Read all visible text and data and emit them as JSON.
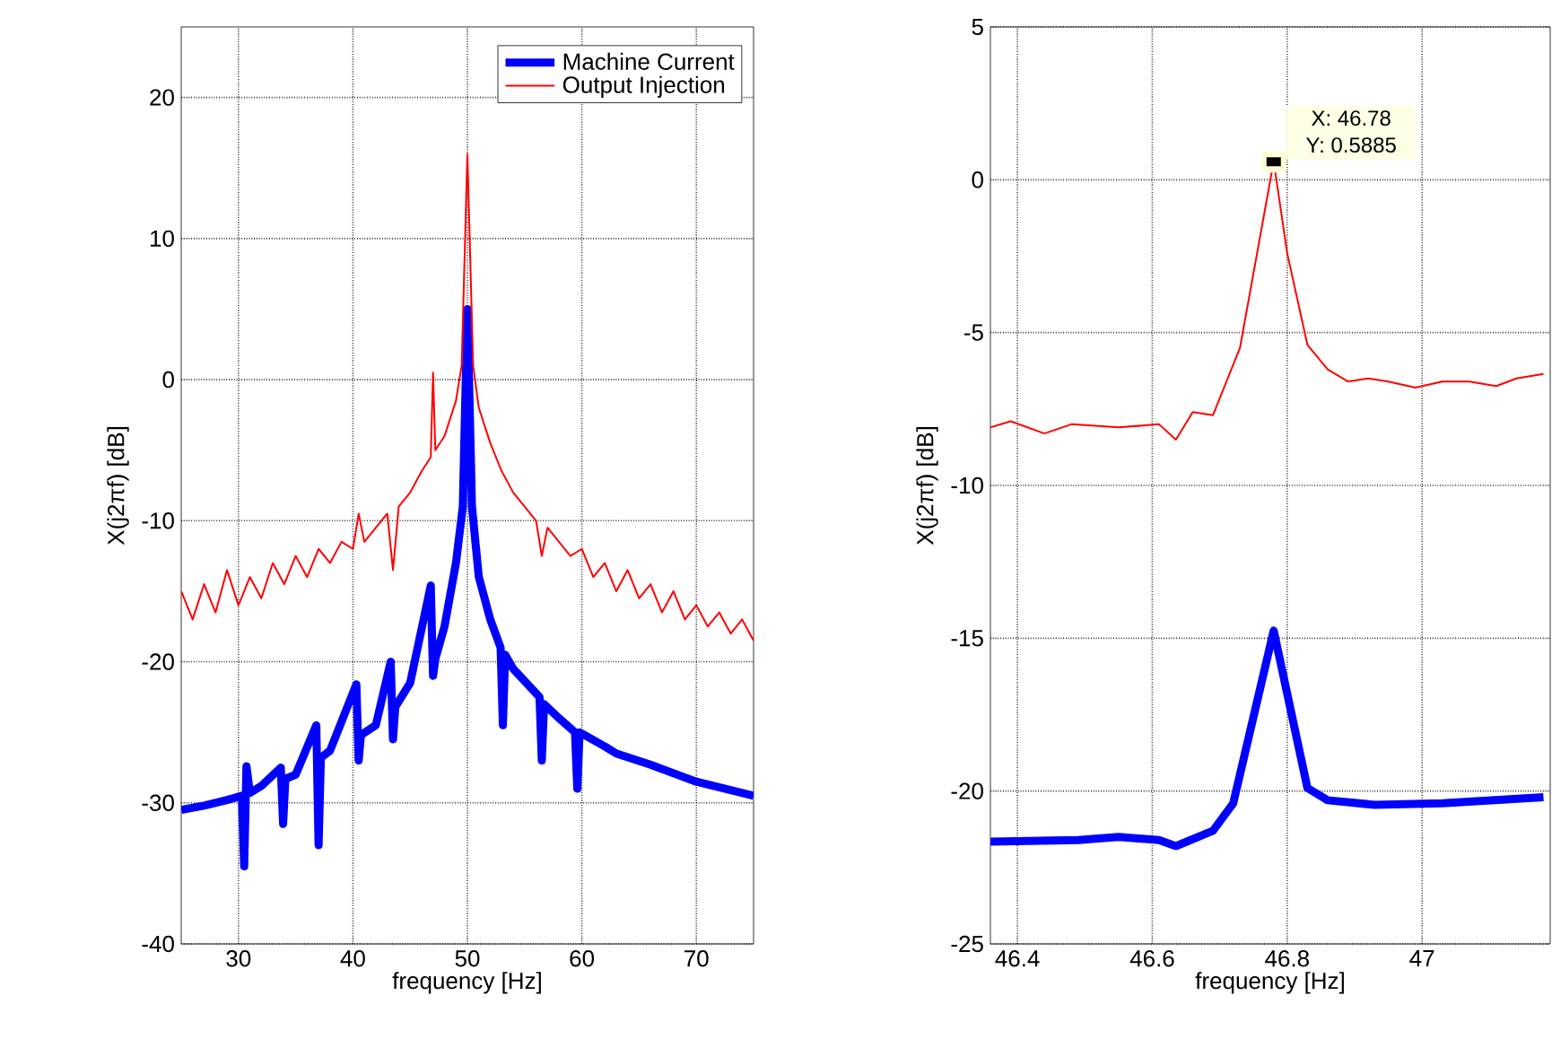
{
  "chart_data": [
    {
      "type": "line",
      "xlabel": "frequency [Hz]",
      "ylabel": "X(j2πf) [dB]",
      "xlim": [
        25,
        75
      ],
      "ylim": [
        -40,
        25
      ],
      "xticks": [
        30,
        40,
        50,
        60,
        70
      ],
      "yticks": [
        -40,
        -30,
        -20,
        -10,
        0,
        10,
        20
      ],
      "grid": true,
      "legend": "top right",
      "series": [
        {
          "name": "Machine Current",
          "color": "#0000ff",
          "x": [
            25,
            27,
            29,
            30.3,
            30.5,
            30.7,
            31,
            32,
            33.7,
            33.9,
            34.1,
            35,
            36.8,
            37,
            37.2,
            38,
            40.3,
            40.5,
            40.7,
            42,
            43.3,
            43.5,
            43.7,
            45,
            46.8,
            47,
            47.2,
            48,
            49,
            49.6,
            50,
            50.4,
            51,
            52,
            52.9,
            53.1,
            53.3,
            54,
            56.3,
            56.5,
            56.7,
            58,
            59.4,
            59.6,
            59.8,
            62,
            63,
            66,
            70,
            75
          ],
          "values": [
            -30.5,
            -30.2,
            -29.8,
            -29.5,
            -34.5,
            -27.4,
            -29.3,
            -28.8,
            -27.5,
            -31.5,
            -28.3,
            -28,
            -24.5,
            -33,
            -26.8,
            -26.3,
            -21.6,
            -27,
            -25.2,
            -24.5,
            -20,
            -25.5,
            -23.2,
            -21.5,
            -14.6,
            -21,
            -19.8,
            -17.5,
            -13,
            -9,
            5,
            -9,
            -14,
            -17,
            -19,
            -24.5,
            -19.5,
            -20.5,
            -22.5,
            -27,
            -23,
            -24,
            -25,
            -29,
            -25,
            -26,
            -26.5,
            -27.3,
            -28.5,
            -29.5
          ]
        },
        {
          "name": "Output Injection",
          "color": "#ff0000",
          "x": [
            25,
            26,
            27,
            28,
            29,
            30,
            31,
            32,
            33,
            34,
            35,
            36,
            37,
            38,
            39,
            40,
            40.5,
            41,
            42,
            43,
            43.5,
            44,
            45,
            46,
            46.8,
            47,
            47.2,
            48,
            49,
            49.5,
            50,
            50.5,
            51,
            52,
            53,
            54,
            55,
            56,
            56.5,
            57,
            58,
            59,
            60,
            61,
            62,
            63,
            64,
            65,
            66,
            67,
            68,
            69,
            70,
            71,
            72,
            73,
            74,
            75
          ],
          "values": [
            -15,
            -17,
            -14.5,
            -16.5,
            -13.5,
            -16,
            -14,
            -15.5,
            -13,
            -14.5,
            -12.5,
            -14,
            -12,
            -13,
            -11.5,
            -12,
            -9.5,
            -11.5,
            -10.5,
            -9.5,
            -13.5,
            -9,
            -8,
            -6.5,
            -5.5,
            0.5,
            -5,
            -4,
            -1.5,
            1,
            16,
            1,
            -2,
            -4.5,
            -6.5,
            -8,
            -9,
            -10,
            -12.5,
            -10.5,
            -11.5,
            -12.5,
            -12,
            -14,
            -13,
            -15,
            -13.5,
            -15.5,
            -14.5,
            -16.5,
            -15,
            -17,
            -16,
            -17.5,
            -16.5,
            -18,
            -17,
            -18.5
          ]
        }
      ]
    },
    {
      "type": "line",
      "xlabel": "frequency [Hz]",
      "ylabel": "X(j2πf) [dB]",
      "xlim": [
        46.36,
        47.19
      ],
      "ylim": [
        -25,
        5
      ],
      "xticks": [
        46.4,
        46.6,
        46.8,
        47
      ],
      "yticks": [
        -25,
        -20,
        -15,
        -10,
        -5,
        0,
        5
      ],
      "grid": true,
      "annotations": [
        {
          "text": "X: 46.78",
          "x": 46.78,
          "y": 0.5885
        },
        {
          "text": "Y: 0.5885",
          "x": 46.78,
          "y": 0.5885
        }
      ],
      "series": [
        {
          "color": "#0000ff",
          "x": [
            46.36,
            46.49,
            46.55,
            46.61,
            46.635,
            46.69,
            46.72,
            46.78,
            46.83,
            46.86,
            46.93,
            47.03,
            47.18
          ],
          "values": [
            -21.65,
            -21.6,
            -21.5,
            -21.6,
            -21.8,
            -21.3,
            -20.4,
            -14.75,
            -19.9,
            -20.3,
            -20.45,
            -20.4,
            -20.2
          ]
        },
        {
          "color": "#ff0000",
          "x": [
            46.36,
            46.39,
            46.44,
            46.48,
            46.55,
            46.61,
            46.635,
            46.66,
            46.69,
            46.73,
            46.78,
            46.8,
            46.83,
            46.86,
            46.89,
            46.92,
            46.95,
            46.99,
            47.03,
            47.07,
            47.11,
            47.14,
            47.18
          ],
          "values": [
            -8.1,
            -7.9,
            -8.3,
            -8.0,
            -8.1,
            -8.0,
            -8.5,
            -7.6,
            -7.7,
            -5.5,
            0.6,
            -2.4,
            -5.4,
            -6.2,
            -6.6,
            -6.5,
            -6.6,
            -6.8,
            -6.6,
            -6.6,
            -6.75,
            -6.5,
            -6.35
          ]
        }
      ]
    }
  ]
}
